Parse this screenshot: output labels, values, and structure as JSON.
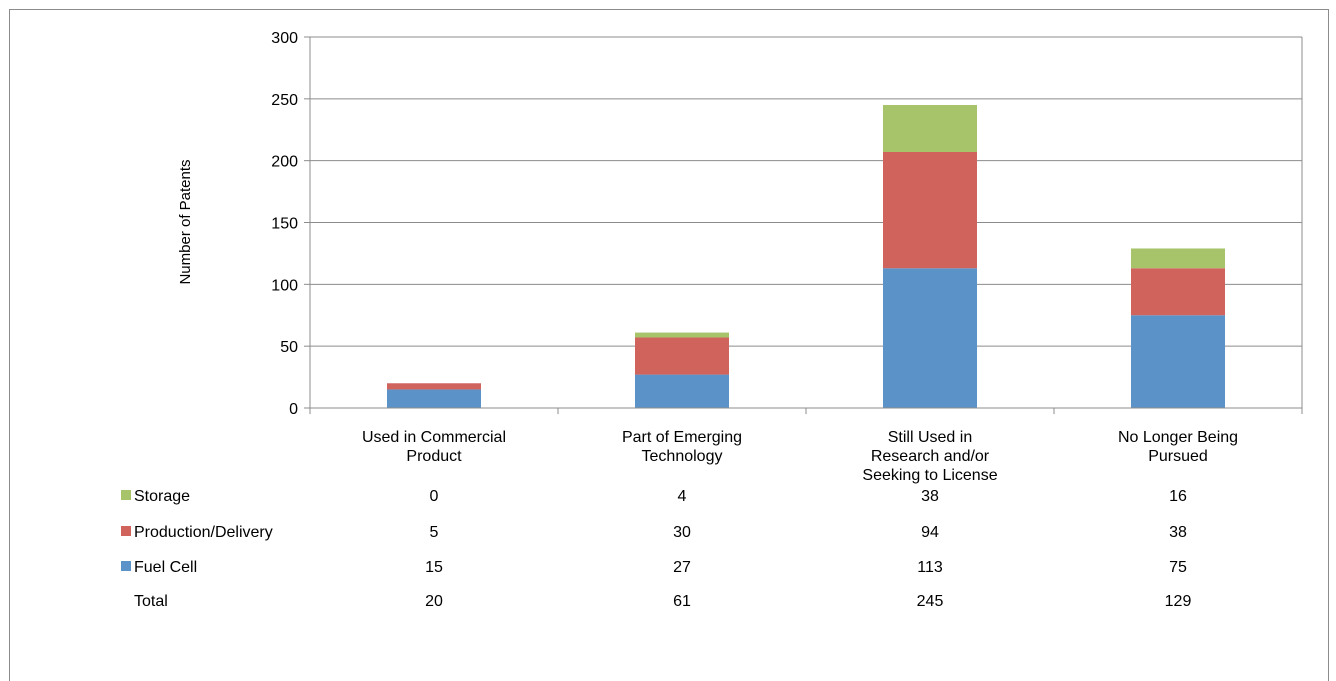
{
  "chart_data": {
    "type": "bar",
    "stacked": true,
    "title": "",
    "xlabel": "",
    "ylabel": "Number of Patents",
    "ylim": [
      0,
      300
    ],
    "yticks": [
      0,
      50,
      100,
      150,
      200,
      250,
      300
    ],
    "grid": true,
    "categories": [
      [
        "Used in Commercial",
        "Product"
      ],
      [
        "Part of Emerging",
        "Technology"
      ],
      [
        "Still Used in",
        "Research and/or",
        "Seeking to License"
      ],
      [
        "No Longer Being",
        "Pursued"
      ]
    ],
    "series": [
      {
        "name": "Fuel Cell",
        "color": "#5b93c8",
        "values": [
          15,
          27,
          113,
          75
        ]
      },
      {
        "name": "Production/Delivery",
        "color": "#d0635c",
        "values": [
          5,
          30,
          94,
          38
        ]
      },
      {
        "name": "Storage",
        "color": "#a8c46a",
        "values": [
          0,
          4,
          38,
          16
        ]
      }
    ],
    "data_table": {
      "rows": [
        {
          "label": "Storage",
          "series": "Storage",
          "values": [
            "0",
            "4",
            "38",
            "16"
          ]
        },
        {
          "label": "Production/Delivery",
          "series": "Production/Delivery",
          "values": [
            "5",
            "30",
            "94",
            "38"
          ]
        },
        {
          "label": "Fuel Cell",
          "series": "Fuel Cell",
          "values": [
            "15",
            "27",
            "113",
            "75"
          ]
        },
        {
          "label": "Total",
          "series": null,
          "values": [
            "20",
            "61",
            "245",
            "129"
          ]
        }
      ]
    }
  }
}
